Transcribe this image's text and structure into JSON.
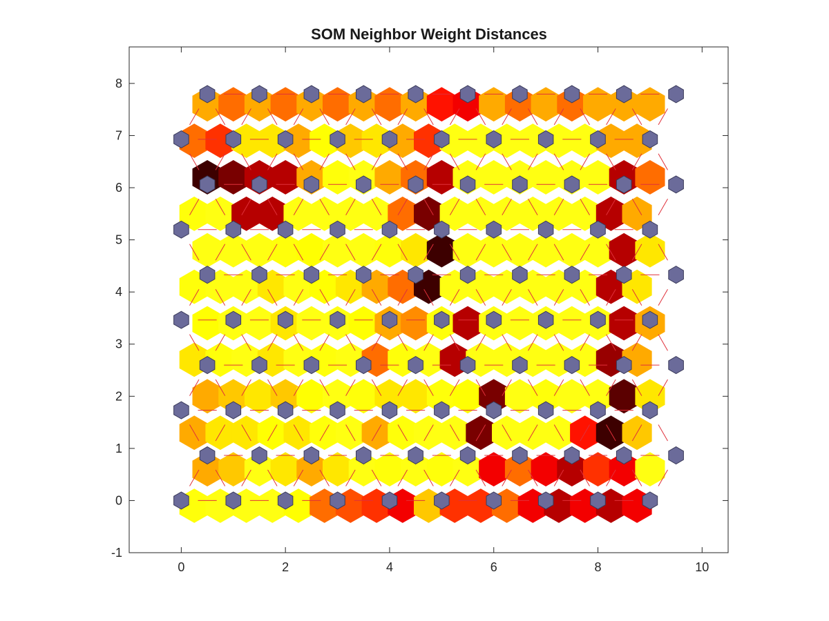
{
  "chart_data": {
    "type": "heatmap",
    "title": "SOM Neighbor Weight Distances",
    "xlabel": "",
    "ylabel": "",
    "xlim": [
      -1,
      10.5
    ],
    "ylim": [
      -1,
      8.7
    ],
    "xticks": [
      0,
      2,
      4,
      6,
      8,
      10
    ],
    "yticks": [
      -1,
      0,
      1,
      2,
      3,
      4,
      5,
      6,
      7,
      8
    ],
    "xtick_labels": [
      "0",
      "2",
      "4",
      "6",
      "8",
      "10"
    ],
    "ytick_labels": [
      "-1",
      "0",
      "1",
      "2",
      "3",
      "4",
      "5",
      "6",
      "7",
      "8"
    ],
    "grid": false,
    "topology": "hexagonal",
    "grid_size": [
      10,
      10
    ],
    "neuron_color": "#6b6b9a",
    "connection_color": "#e0303a",
    "colormap": "hot",
    "distance_levels": [
      [
        0.1,
        0.05,
        0.05,
        0.05,
        0.15,
        0.4,
        0.45,
        0.5,
        0.6,
        0.25,
        0.5,
        0.5,
        0.4,
        0.6,
        0.7,
        0.6,
        0.7,
        0.6
      ],
      [
        0.3,
        0.25,
        0.05,
        0.2,
        0.3,
        0.2,
        0.05,
        0.1,
        0.05,
        0.1,
        0.05,
        0.6,
        0.4,
        0.6,
        0.7,
        0.5,
        0.6,
        0.05
      ],
      [
        0.3,
        0.2,
        0.2,
        0.15,
        0.2,
        0.1,
        0.05,
        0.3,
        0.1,
        0.05,
        0.05,
        0.8,
        0.05,
        0.05,
        0.05,
        0.55,
        0.9,
        0.25
      ],
      [
        0.3,
        0.25,
        0.2,
        0.25,
        0.15,
        0.05,
        0.1,
        0.2,
        0.2,
        0.1,
        0.15,
        0.8,
        0.05,
        0.1,
        0.05,
        0.05,
        0.85,
        0.2
      ],
      [
        0.2,
        0.1,
        0.05,
        0.2,
        0.05,
        0.1,
        0.05,
        0.4,
        0.1,
        0.05,
        0.7,
        0.05,
        0.05,
        0.05,
        0.05,
        0.05,
        0.75,
        0.3
      ],
      [
        0.15,
        0.05,
        0.05,
        0.2,
        0.05,
        0.05,
        0.15,
        0.3,
        0.35,
        0.1,
        0.7,
        0.05,
        0.05,
        0.05,
        0.05,
        0.05,
        0.7,
        0.3
      ],
      [
        0.1,
        0.05,
        0.05,
        0.2,
        0.05,
        0.15,
        0.2,
        0.3,
        0.4,
        0.9,
        0.05,
        0.05,
        0.05,
        0.05,
        0.05,
        0.05,
        0.7,
        0.2
      ],
      [
        0.05,
        0.05,
        0.05,
        0.1,
        0.15,
        0.05,
        0.05,
        0.1,
        0.2,
        0.9,
        0.05,
        0.05,
        0.05,
        0.05,
        0.05,
        0.05,
        0.7,
        0.2
      ],
      [
        0.1,
        0.05,
        0.7,
        0.7,
        0.05,
        0.05,
        0.05,
        0.05,
        0.4,
        0.8,
        0.05,
        0.05,
        0.05,
        0.05,
        0.05,
        0.05,
        0.7,
        0.3
      ],
      [
        0.9,
        0.8,
        0.7,
        0.7,
        0.3,
        0.1,
        0.05,
        0.3,
        0.4,
        0.7,
        0.05,
        0.05,
        0.05,
        0.05,
        0.05,
        0.05,
        0.7,
        0.4
      ],
      [
        0.4,
        0.5,
        0.2,
        0.2,
        0.3,
        0.15,
        0.25,
        0.2,
        0.3,
        0.5,
        0.05,
        0.05,
        0.05,
        0.05,
        0.05,
        0.05,
        0.3,
        0.3
      ],
      [
        0.3,
        0.4,
        0.3,
        0.4,
        0.3,
        0.4,
        0.3,
        0.4,
        0.3,
        0.55,
        0.6,
        0.3,
        0.4,
        0.3,
        0.4,
        0.3,
        0.3,
        0.3
      ]
    ]
  }
}
